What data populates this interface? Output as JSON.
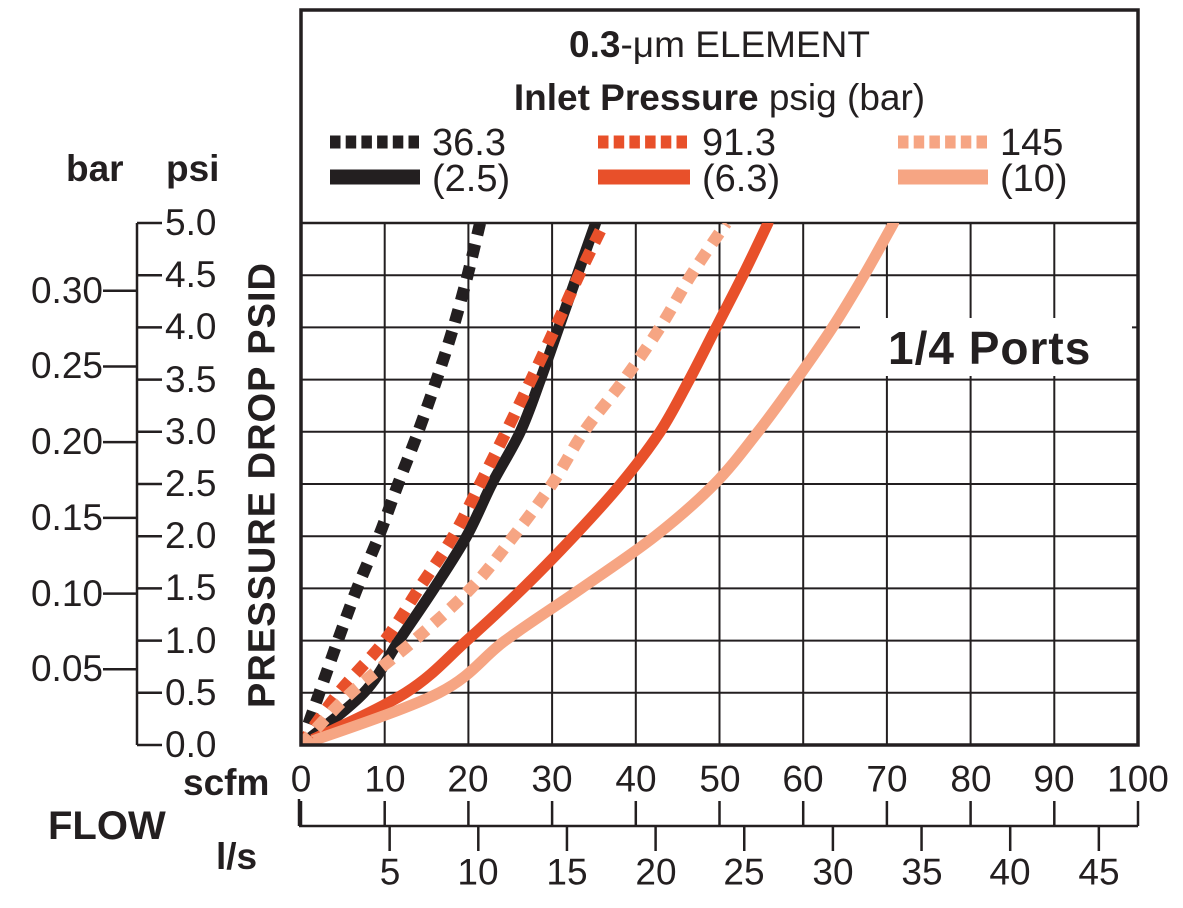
{
  "title": {
    "line1_bold": "0.3",
    "line1_rest": "-μm ELEMENT",
    "line2_bold": "Inlet Pressure",
    "line2_rest": " psig (bar)"
  },
  "legend": {
    "entries": [
      {
        "psig_label": "36.3",
        "bar_label": "(2.5)",
        "color": "#231f20"
      },
      {
        "psig_label": "91.3",
        "bar_label": "(6.3)",
        "color": "#e8502a"
      },
      {
        "psig_label": "145",
        "bar_label": "(10)",
        "color": "#f6a583"
      }
    ]
  },
  "annotation": "1/4 Ports",
  "axes": {
    "left": {
      "bar_header": "bar",
      "psi_header": "psi",
      "axis_label": "PRESSURE DROP PSID",
      "psi_ticks": [
        "5.0",
        "4.5",
        "4.0",
        "3.5",
        "3.0",
        "2.5",
        "2.0",
        "1.5",
        "1.0",
        "0.5",
        "0.0"
      ],
      "bar_ticks": [
        "0.30",
        "0.25",
        "0.20",
        "0.15",
        "0.10",
        "0.05"
      ]
    },
    "bottom": {
      "scfm_header": "scfm",
      "flow_header": "FLOW",
      "ls_header": "l/s",
      "scfm_ticks": [
        "0",
        "10",
        "20",
        "30",
        "40",
        "50",
        "60",
        "70",
        "80",
        "90",
        "100"
      ],
      "ls_ticks": [
        "5",
        "10",
        "15",
        "20",
        "25",
        "30",
        "35",
        "40",
        "45"
      ]
    }
  },
  "chart_data": {
    "type": "line",
    "title": "0.3-μm ELEMENT — Inlet Pressure psig (bar)",
    "xlabel": "FLOW (scfm, upper scale; l/s, lower scale)",
    "ylabel": "PRESSURE DROP PSID (psi, right scale; bar, left scale)",
    "annotation": "1/4 Ports",
    "xlim_scfm": [
      0,
      100
    ],
    "ylim_psi": [
      0,
      5
    ],
    "grid": true,
    "legend_position": "top",
    "ls_per_scfm": 0.4719,
    "psi_levels": [
      0,
      0.5,
      1.0,
      1.5,
      2.0,
      2.5,
      3.0,
      3.5,
      4.0,
      4.5,
      5.0
    ],
    "series": [
      {
        "name": "36.3 psig (2.5 bar) - dotted",
        "inlet_psig": 36.3,
        "inlet_bar": 2.5,
        "style": "dotted",
        "color": "#231f20",
        "scfm_at_psi": [
          0,
          2.2,
          4.4,
          6.7,
          9.3,
          11.6,
          14.0,
          16.2,
          18.2,
          19.9,
          21.4
        ]
      },
      {
        "name": "36.3 psig (2.5 bar) - solid",
        "inlet_psig": 36.3,
        "inlet_bar": 2.5,
        "style": "solid",
        "color": "#231f20",
        "scfm_at_psi": [
          0,
          7.5,
          11.7,
          15.9,
          19.8,
          22.8,
          26.2,
          28.6,
          30.8,
          33.0,
          35.2
        ]
      },
      {
        "name": "91.3 psig (6.3 bar) - dotted",
        "inlet_psig": 91.3,
        "inlet_bar": 6.3,
        "style": "dotted",
        "color": "#e8502a",
        "scfm_at_psi": [
          0,
          4.5,
          10.0,
          14.1,
          18.2,
          21.4,
          24.5,
          27.5,
          30.4,
          33.2,
          36.2
        ]
      },
      {
        "name": "91.3 psig (6.3 bar) - solid",
        "inlet_psig": 91.3,
        "inlet_bar": 6.3,
        "style": "solid",
        "color": "#e8502a",
        "scfm_at_psi": [
          0,
          12.5,
          19.8,
          26.5,
          32.6,
          38.2,
          42.9,
          46.4,
          49.6,
          52.8,
          55.8
        ]
      },
      {
        "name": "145 psig (10 bar) - dotted",
        "inlet_psig": 145,
        "inlet_bar": 10,
        "style": "dotted",
        "color": "#f6a583",
        "scfm_at_psi": [
          0,
          6.0,
          13.5,
          20.3,
          25.4,
          30.0,
          33.8,
          38.6,
          42.9,
          46.6,
          50.8
        ]
      },
      {
        "name": "145 psig (10 bar) - solid",
        "inlet_psig": 145,
        "inlet_bar": 10,
        "style": "solid",
        "color": "#f6a583",
        "scfm_at_psi": [
          0,
          16.5,
          24.4,
          33.5,
          42.3,
          49.4,
          54.6,
          59.2,
          63.5,
          67.3,
          70.8
        ]
      }
    ]
  }
}
